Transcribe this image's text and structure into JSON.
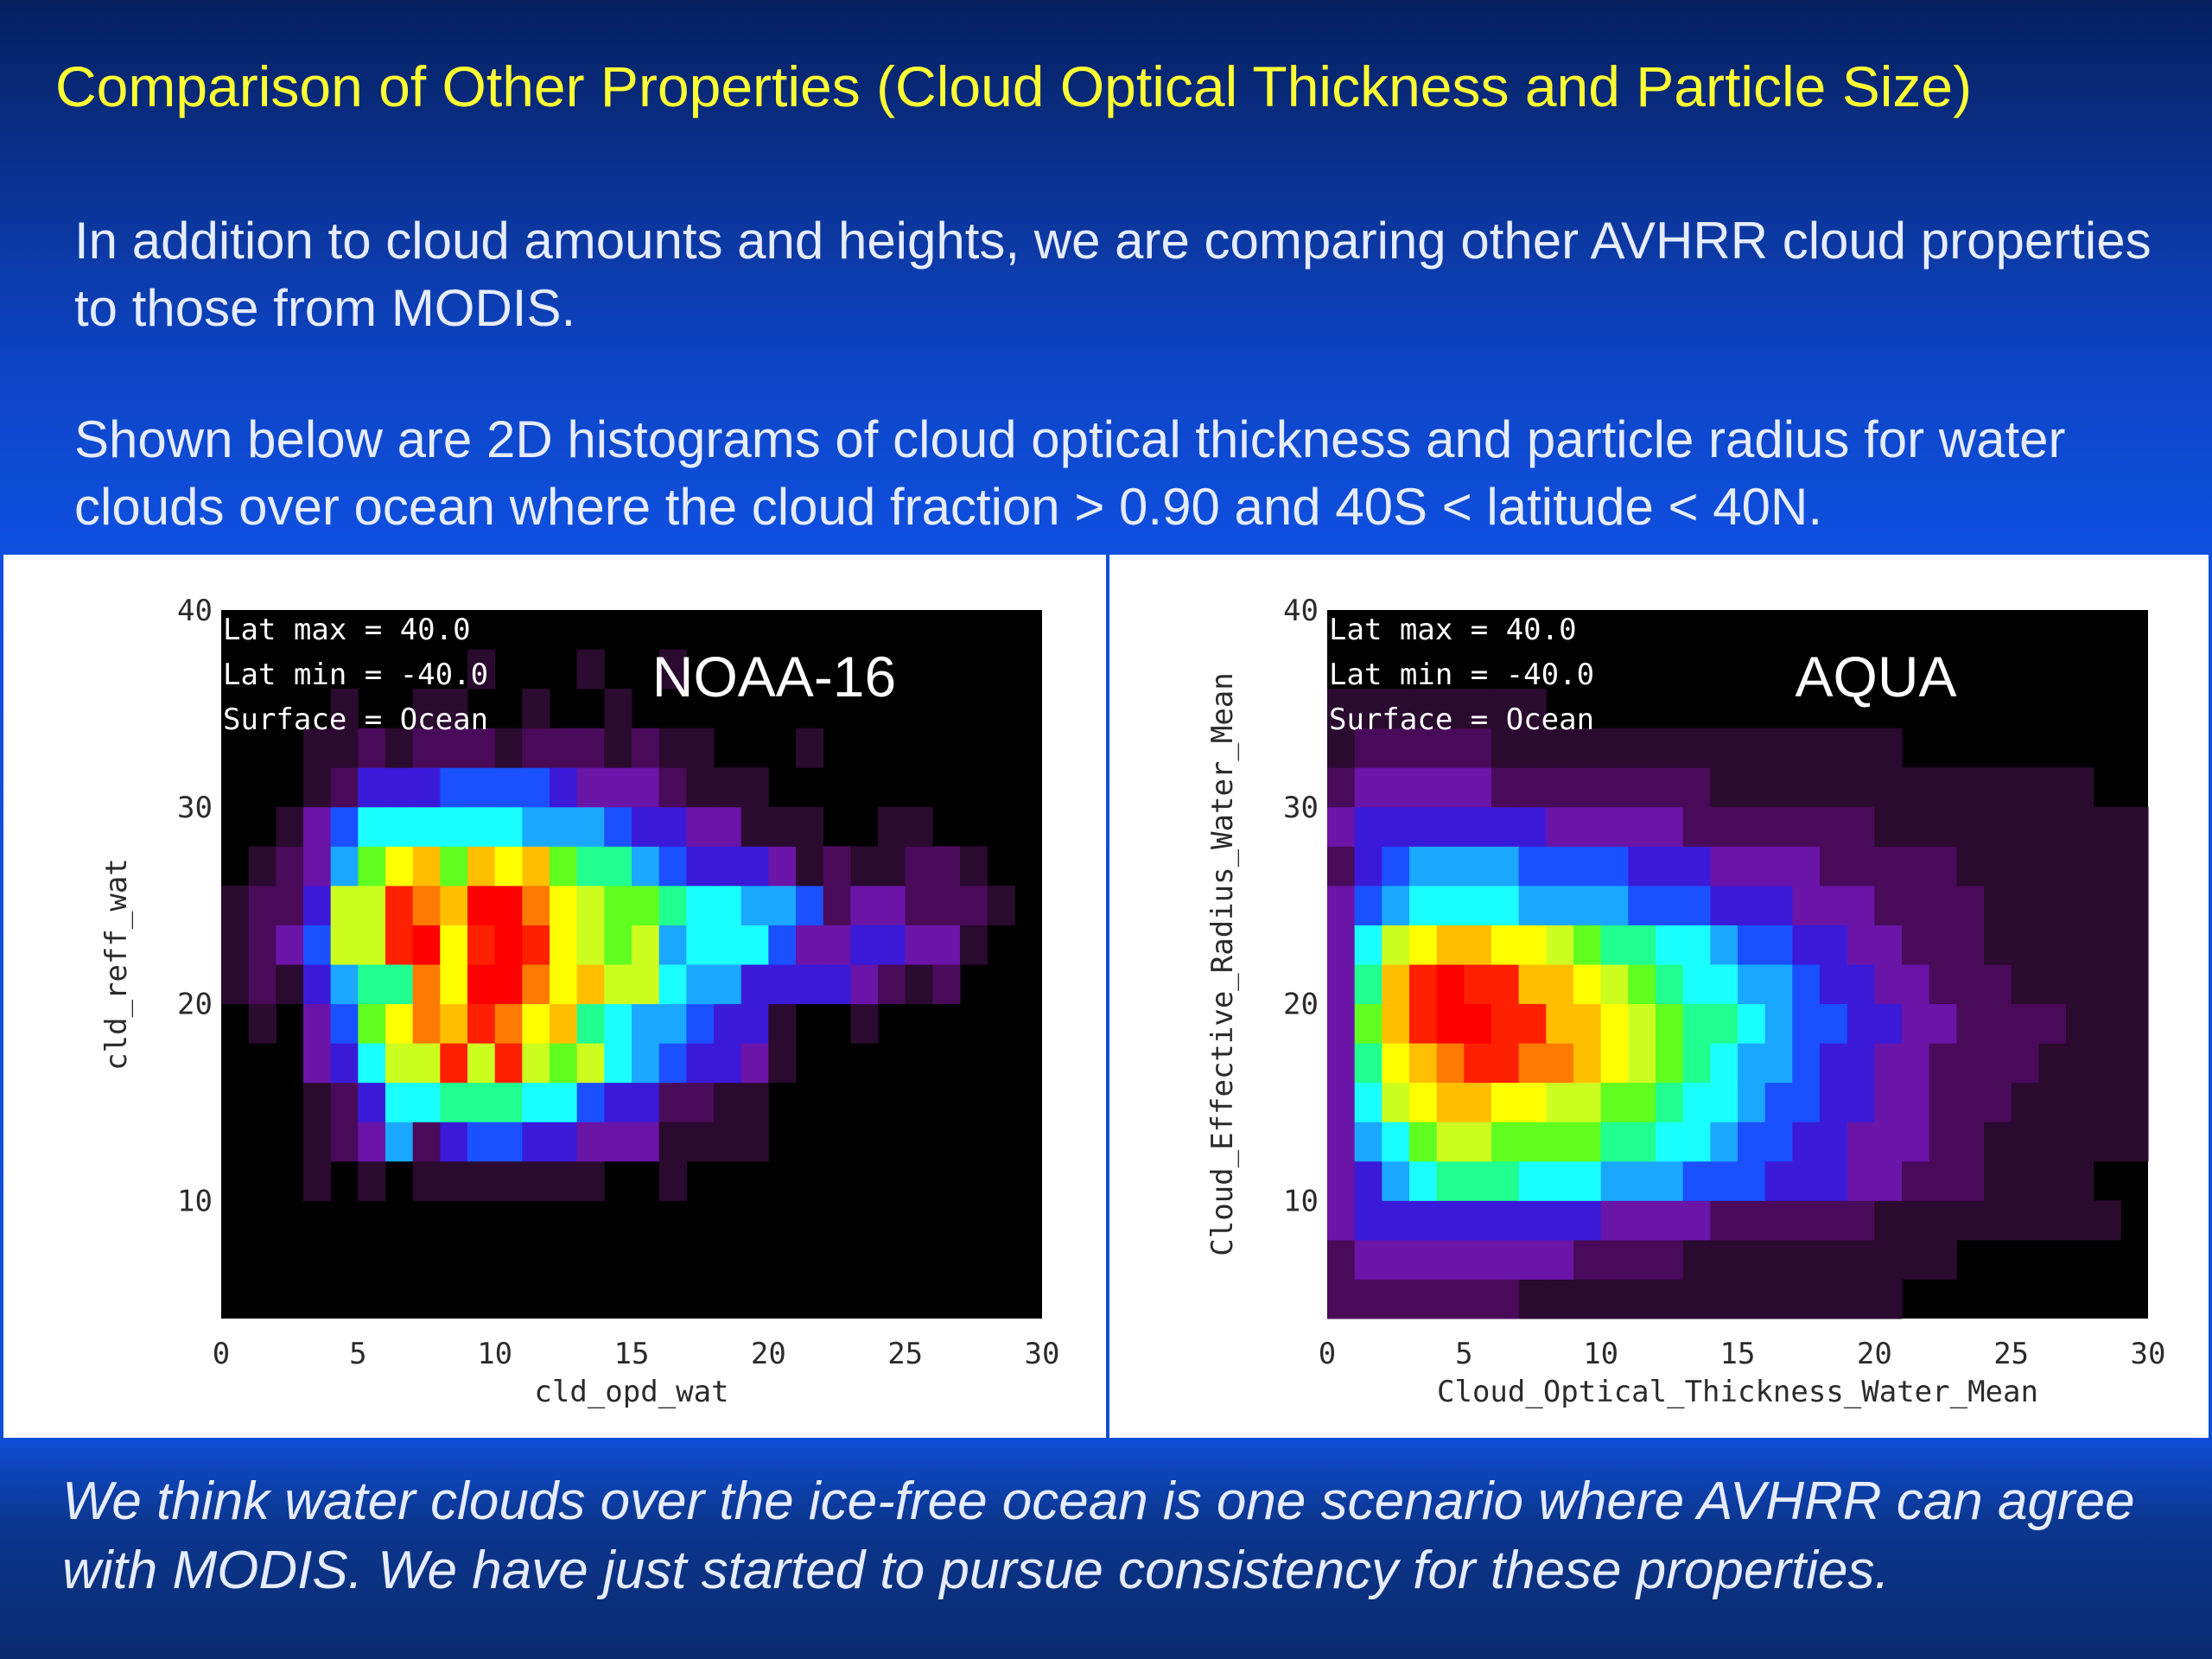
{
  "title": "Comparison of Other Properties (Cloud Optical Thickness and Particle Size)",
  "paragraph1": "In addition to cloud amounts and heights, we are comparing other AVHRR cloud properties to those from MODIS.",
  "paragraph2": "Shown below are 2D histograms of cloud optical thickness and particle radius for water clouds over ocean where the cloud fraction > 0.90 and 40S < latitude < 40N.",
  "footer": "We think water clouds over the ice-free ocean is one scenario where AVHRR can agree with MODIS.  We have just started to pursue consistency for these properties.",
  "colors": {
    "title": "#ffff33",
    "plot_background": "#000000",
    "colormap": [
      "#000000",
      "#2a0a2e",
      "#4a0a5a",
      "#6a14a8",
      "#3a1ad8",
      "#1a50ff",
      "#1aa8ff",
      "#1affff",
      "#20ff90",
      "#60ff20",
      "#ccff20",
      "#ffff00",
      "#ffbf00",
      "#ff7a00",
      "#ff2000",
      "#ff0000"
    ]
  },
  "chart_data": [
    {
      "type": "heatmap",
      "label": "NOAA-16",
      "annotations": [
        "Lat max =  40.0",
        "Lat min = -40.0",
        "Surface = Ocean"
      ],
      "xlabel": "cld_opd_wat",
      "ylabel": "cld_reff_wat",
      "xlim": [
        0,
        30
      ],
      "ylim": [
        4,
        40
      ],
      "xticks": [
        "0",
        "5",
        "10",
        "15",
        "20",
        "25",
        "30"
      ],
      "yticks": [
        "10",
        "20",
        "30",
        "40"
      ],
      "grid": false,
      "x0": 0,
      "y0": 4,
      "dx": 1,
      "dy": 2,
      "cells": [
        "..............................",
        "..............................",
        "...............................",
        "...1.1.1111111..1.............",
        "...12362455443331111..........",
        "...12477888775442211..........",
        "...347AAEAEA9A7654431.........",
        ".1.359BDCEDBC87665441..1......",
        "1214688DBFFDBCAA76644443212...",
        "1235AAEFBEFEBA9A677753344331..",
        "1224AAEDCFFDBA998776652332221.",
        ".12369BC9CBC9886544431211221..",
        "..13577777766654433111..11....",
        "...12444555543332111..........",
        "...112122212221211...1........",
        "....1..11..1..1...............",
        ".........1...1..1.............",
        "..............................",
        ".............................."
      ]
    },
    {
      "type": "heatmap",
      "label": "AQUA",
      "annotations": [
        "Lat max =  40.0",
        "Lat min = -40.0",
        "Surface = Ocean"
      ],
      "xlabel": "Cloud_Optical_Thickness_Water_Mean",
      "ylabel": "Cloud_Effective_Radius_Water_Mean",
      "xlim": [
        0,
        30
      ],
      "ylim": [
        4,
        40
      ],
      "xticks": [
        "0",
        "5",
        "10",
        "15",
        "20",
        "25",
        "30"
      ],
      "yticks": [
        "10",
        "20",
        "30",
        "40"
      ],
      "grid": false,
      "x0": 0,
      "y0": 4,
      "dx": 1,
      "dy": 2,
      "cells": [
        "222222211111111111111.........",
        "23333333322221111111111........",
        "34444444443333222222111111111..",
        "3467888777666555444332221111...",
        "3679AA999988776554433322111111.",
        "37ABCCBBAA998776554433222111111",
        "38BCDEEDDCBA9876654433222211111",
        "39CEFFEECCBA9887655443322221111",
        "38CEFEECCBA98776654433222111111",
        "37ABCCBBA9887765544332221111111",
        "3567777666655544433322221111111",
        "2456666555544433332222211111111",
        "3444444433333222222211111111111",
        "2333332222222211111111111111...",
        "122222111111111111111.........",
        "11111111.......................",
        "..............................",
        "..............................",
        ".............................."
      ]
    }
  ]
}
